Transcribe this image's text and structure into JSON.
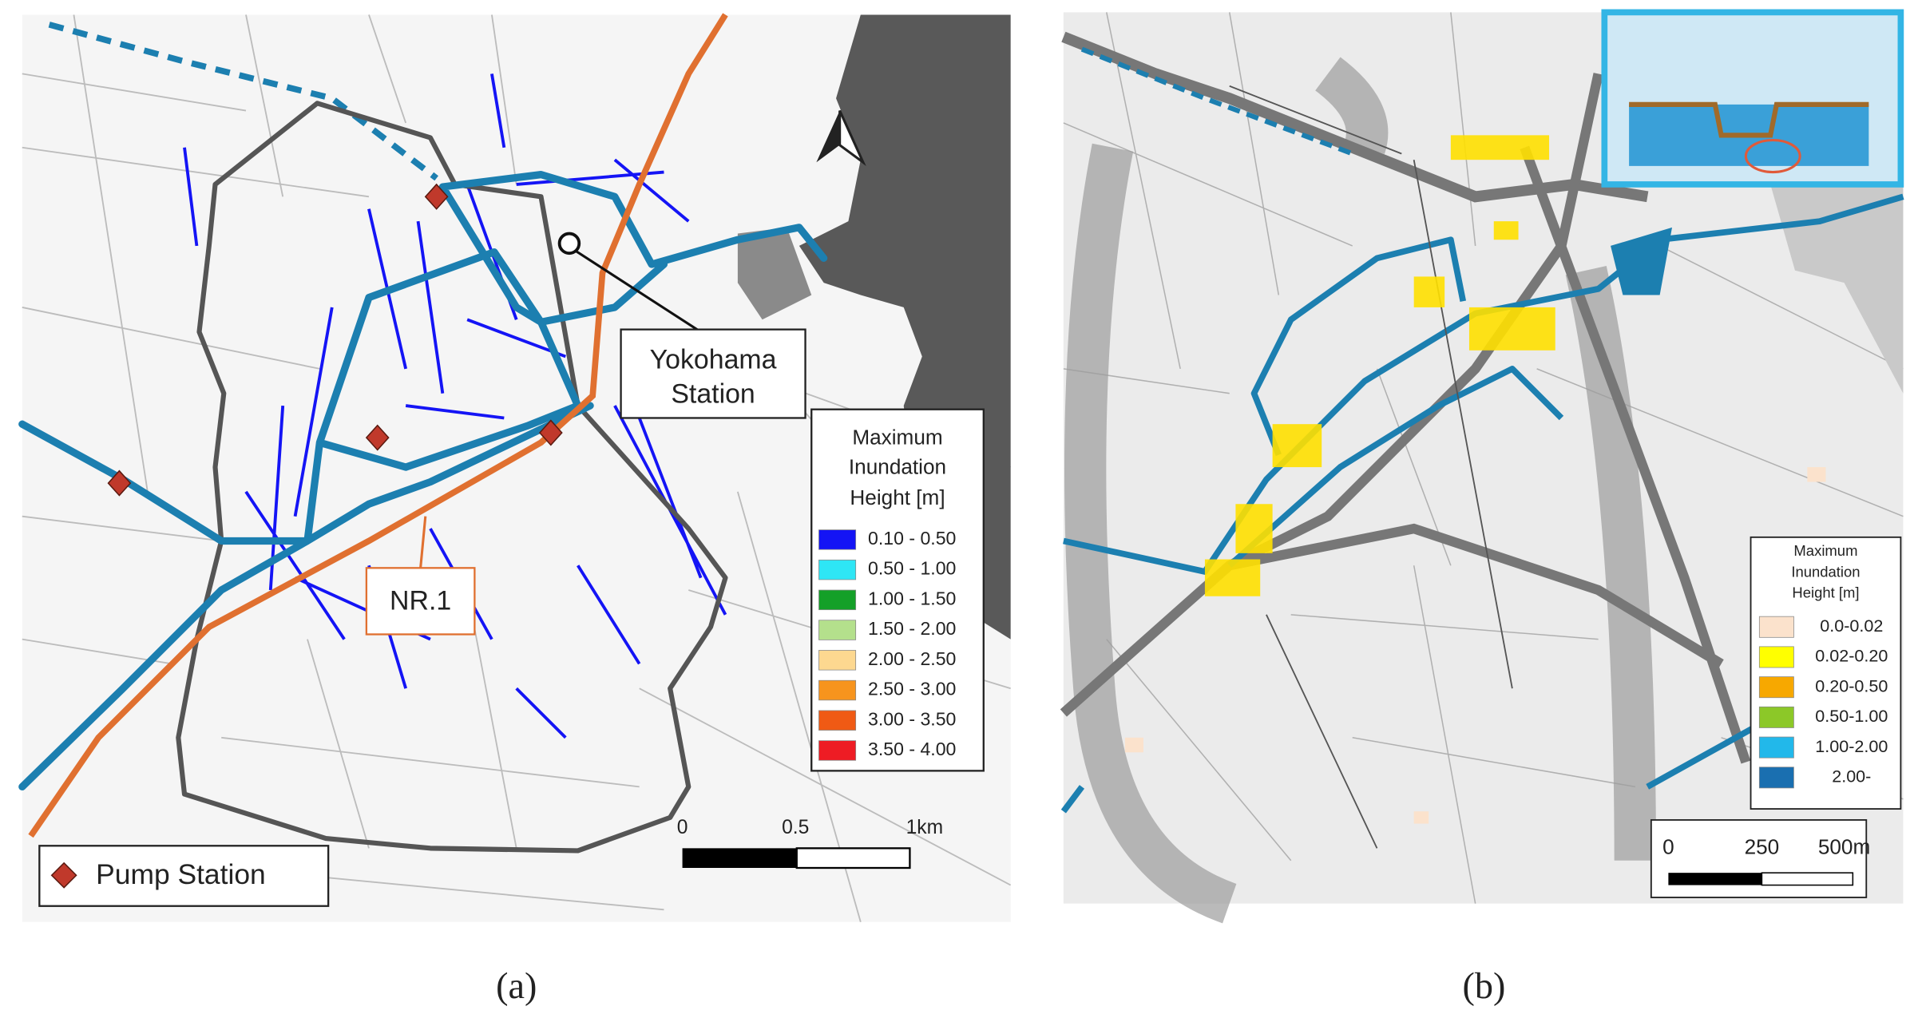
{
  "panel_a": {
    "caption": "(a)",
    "station_label": [
      "Yokohama",
      "Station"
    ],
    "river_label": "NR.1",
    "pump_legend": "Pump Station",
    "legend_title": [
      "Maximum",
      "Inundation",
      "Height [m]"
    ],
    "legend_items": [
      {
        "label": "0.10 - 0.50",
        "color": "#1414f5"
      },
      {
        "label": "0.50 - 1.00",
        "color": "#2ee6f5"
      },
      {
        "label": "1.00 - 1.50",
        "color": "#14a028"
      },
      {
        "label": "1.50 - 2.00",
        "color": "#b4e08c"
      },
      {
        "label": "2.00 - 2.50",
        "color": "#fdd890"
      },
      {
        "label": "2.50 - 3.00",
        "color": "#f7941d"
      },
      {
        "label": "3.00 - 3.50",
        "color": "#f05a14"
      },
      {
        "label": "3.50 - 4.00",
        "color": "#ee1c24"
      }
    ],
    "scale_labels": [
      "0",
      "0.5",
      "1km"
    ]
  },
  "panel_b": {
    "caption": "(b)",
    "legend_title": [
      "Maximum",
      "Inundation",
      "Height [m]"
    ],
    "legend_items": [
      {
        "label": "0.0-0.02",
        "color": "#fbe2cc"
      },
      {
        "label": "0.02-0.20",
        "color": "#ffff00"
      },
      {
        "label": "0.20-0.50",
        "color": "#f7a800"
      },
      {
        "label": "0.50-1.00",
        "color": "#8cc828"
      },
      {
        "label": "1.00-2.00",
        "color": "#22b8ea"
      },
      {
        "label": "2.00-",
        "color": "#1a6fb0"
      }
    ],
    "scale_labels": [
      "0",
      "250",
      "500m"
    ]
  }
}
